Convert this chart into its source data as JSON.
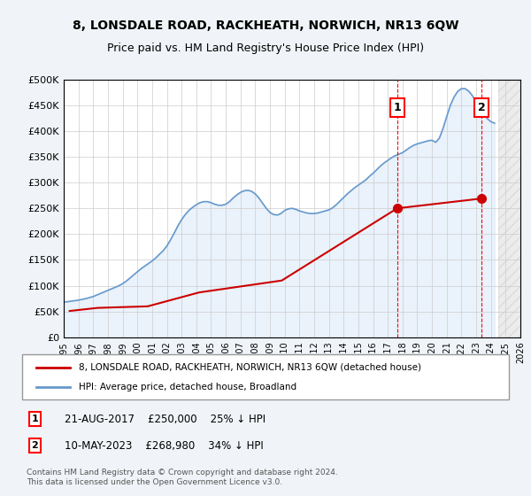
{
  "title": "8, LONSDALE ROAD, RACKHEATH, NORWICH, NR13 6QW",
  "subtitle": "Price paid vs. HM Land Registry's House Price Index (HPI)",
  "hpi_color": "#6699cc",
  "hpi_fill_color": "#cce0f5",
  "price_color": "#cc0000",
  "background_color": "#f0f4f8",
  "plot_bg_color": "#ffffff",
  "grid_color": "#cccccc",
  "ylim": [
    0,
    500000
  ],
  "yticks": [
    0,
    50000,
    100000,
    150000,
    200000,
    250000,
    300000,
    350000,
    400000,
    450000,
    500000
  ],
  "ytick_labels": [
    "£0",
    "£50K",
    "£100K",
    "£150K",
    "£200K",
    "£250K",
    "£300K",
    "£350K",
    "£400K",
    "£450K",
    "£500K"
  ],
  "legend_line1": "8, LONSDALE ROAD, RACKHEATH, NORWICH, NR13 6QW (detached house)",
  "legend_line2": "HPI: Average price, detached house, Broadland",
  "annotation1_label": "1",
  "annotation1_date": "21-AUG-2017",
  "annotation1_price": 250000,
  "annotation1_text": "21-AUG-2017    £250,000    25% ↓ HPI",
  "annotation2_label": "2",
  "annotation2_date": "10-MAY-2023",
  "annotation2_price": 268980,
  "annotation2_text": "10-MAY-2023    £268,980    34% ↓ HPI",
  "footer": "Contains HM Land Registry data © Crown copyright and database right 2024.\nThis data is licensed under the Open Government Licence v3.0.",
  "hpi_years": [
    1995.0,
    1995.25,
    1995.5,
    1995.75,
    1996.0,
    1996.25,
    1996.5,
    1996.75,
    1997.0,
    1997.25,
    1997.5,
    1997.75,
    1998.0,
    1998.25,
    1998.5,
    1998.75,
    1999.0,
    1999.25,
    1999.5,
    1999.75,
    2000.0,
    2000.25,
    2000.5,
    2000.75,
    2001.0,
    2001.25,
    2001.5,
    2001.75,
    2002.0,
    2002.25,
    2002.5,
    2002.75,
    2003.0,
    2003.25,
    2003.5,
    2003.75,
    2004.0,
    2004.25,
    2004.5,
    2004.75,
    2005.0,
    2005.25,
    2005.5,
    2005.75,
    2006.0,
    2006.25,
    2006.5,
    2006.75,
    2007.0,
    2007.25,
    2007.5,
    2007.75,
    2008.0,
    2008.25,
    2008.5,
    2008.75,
    2009.0,
    2009.25,
    2009.5,
    2009.75,
    2010.0,
    2010.25,
    2010.5,
    2010.75,
    2011.0,
    2011.25,
    2011.5,
    2011.75,
    2012.0,
    2012.25,
    2012.5,
    2012.75,
    2013.0,
    2013.25,
    2013.5,
    2013.75,
    2014.0,
    2014.25,
    2014.5,
    2014.75,
    2015.0,
    2015.25,
    2015.5,
    2015.75,
    2016.0,
    2016.25,
    2016.5,
    2016.75,
    2017.0,
    2017.25,
    2017.5,
    2017.75,
    2018.0,
    2018.25,
    2018.5,
    2018.75,
    2019.0,
    2019.25,
    2019.5,
    2019.75,
    2020.0,
    2020.25,
    2020.5,
    2020.75,
    2021.0,
    2021.25,
    2021.5,
    2021.75,
    2022.0,
    2022.25,
    2022.5,
    2022.75,
    2023.0,
    2023.25,
    2023.5,
    2023.75,
    2024.0,
    2024.25
  ],
  "hpi_values": [
    68000,
    69000,
    70000,
    71000,
    72000,
    73500,
    75000,
    77000,
    79000,
    82000,
    85000,
    88000,
    91000,
    94000,
    97000,
    100000,
    104000,
    109000,
    115000,
    121000,
    127000,
    133000,
    138000,
    143000,
    148000,
    154000,
    161000,
    168000,
    177000,
    189000,
    202000,
    216000,
    228000,
    238000,
    246000,
    252000,
    257000,
    261000,
    263000,
    263000,
    261000,
    258000,
    256000,
    256000,
    258000,
    263000,
    270000,
    276000,
    281000,
    284000,
    285000,
    283000,
    278000,
    270000,
    260000,
    250000,
    242000,
    238000,
    237000,
    240000,
    246000,
    249000,
    250000,
    248000,
    245000,
    243000,
    241000,
    240000,
    240000,
    241000,
    243000,
    245000,
    247000,
    251000,
    257000,
    264000,
    271000,
    278000,
    284000,
    290000,
    295000,
    300000,
    305000,
    312000,
    318000,
    325000,
    332000,
    338000,
    343000,
    348000,
    352000,
    355000,
    358000,
    363000,
    368000,
    372000,
    375000,
    377000,
    379000,
    381000,
    382000,
    378000,
    386000,
    405000,
    428000,
    450000,
    466000,
    477000,
    482000,
    482000,
    477000,
    468000,
    456000,
    443000,
    432000,
    424000,
    418000,
    415000
  ],
  "price_years": [
    1995.4,
    1997.3,
    2000.7,
    2004.2,
    2009.8,
    2017.64,
    2023.36
  ],
  "price_values": [
    51000,
    57000,
    60000,
    87000,
    110000,
    250000,
    268980
  ],
  "sale1_year": 2017.64,
  "sale1_value": 250000,
  "sale2_year": 2023.36,
  "sale2_value": 268980,
  "xmin": 1995,
  "xmax": 2026
}
